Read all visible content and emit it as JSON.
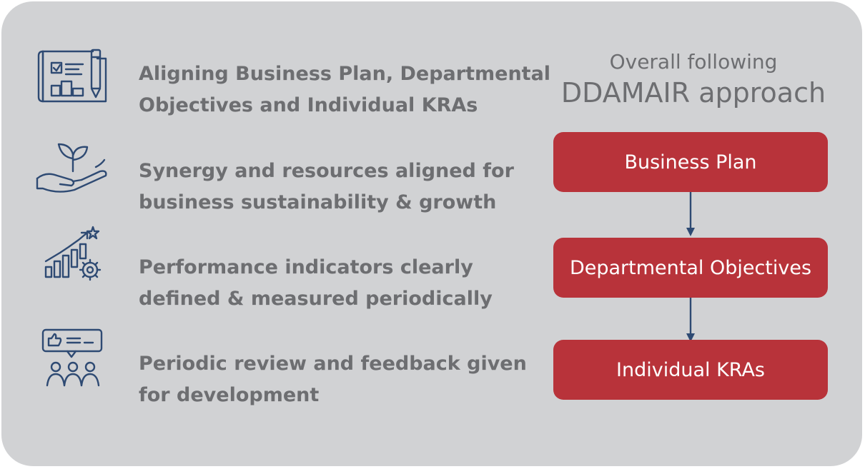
{
  "points": [
    {
      "icon": "blueprint-icon",
      "line1": "Aligning Business Plan, Departmental",
      "line2": "Objectives and Individual KRAs"
    },
    {
      "icon": "plant-in-hand-icon",
      "line1": "Synergy and resources aligned for",
      "line2": "business sustainability & growth"
    },
    {
      "icon": "growth-chart-gear-icon",
      "line1": "Performance indicators clearly",
      "line2": "defined & measured periodically"
    },
    {
      "icon": "feedback-group-icon",
      "line1": "Periodic review and feedback given",
      "line2": "for development"
    }
  ],
  "approach": {
    "line1": "Overall following",
    "line2": "DDAMAIR approach"
  },
  "flow": [
    {
      "label": "Business Plan"
    },
    {
      "label": "Departmental Objectives"
    },
    {
      "label": "Individual KRAs"
    }
  ],
  "colors": {
    "panel": "#d1d2d4",
    "text": "#6d6e71",
    "icon": "#2e4a73",
    "box": "#b8333a",
    "box_text": "#ffffff"
  }
}
